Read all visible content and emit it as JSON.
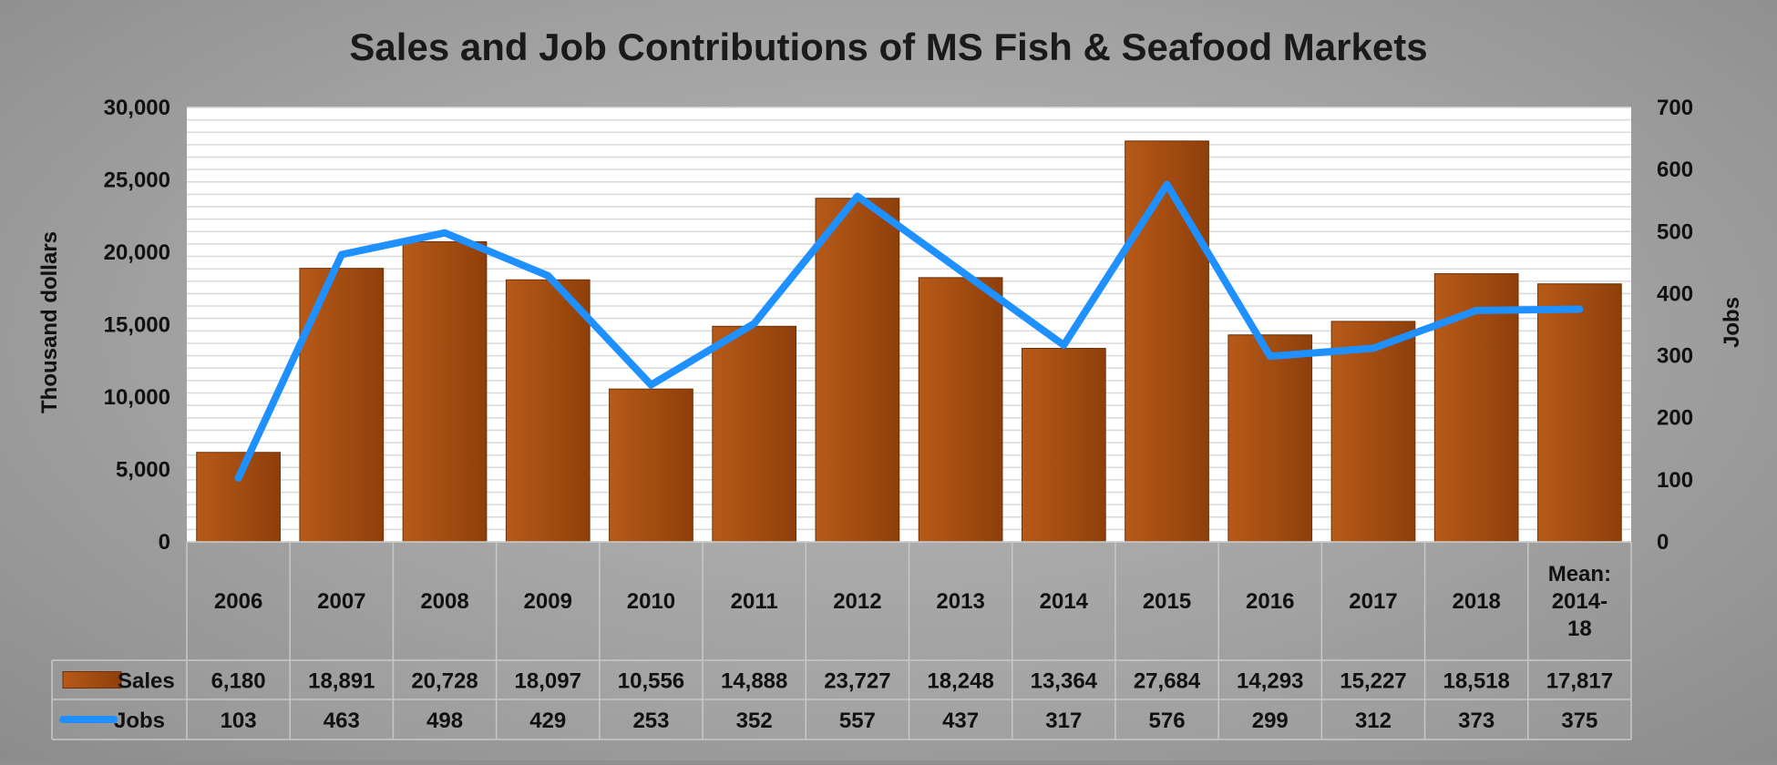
{
  "chart_data": {
    "type": "bar",
    "title": "Sales and Job Contributions of MS Fish & Seafood Markets",
    "categories": [
      "2006",
      "2007",
      "2008",
      "2009",
      "2010",
      "2011",
      "2012",
      "2013",
      "2014",
      "2015",
      "2016",
      "2017",
      "2018",
      "Mean: 2014-18"
    ],
    "category_lines": [
      [
        "2006"
      ],
      [
        "2007"
      ],
      [
        "2008"
      ],
      [
        "2009"
      ],
      [
        "2010"
      ],
      [
        "2011"
      ],
      [
        "2012"
      ],
      [
        "2013"
      ],
      [
        "2014"
      ],
      [
        "2015"
      ],
      [
        "2016"
      ],
      [
        "2017"
      ],
      [
        "2018"
      ],
      [
        "Mean:",
        "2014-",
        "18"
      ]
    ],
    "series": [
      {
        "name": "Sales",
        "type": "bar",
        "axis": "left",
        "color": "#a04a0f",
        "values": [
          6180,
          18891,
          20728,
          18097,
          10556,
          14888,
          23727,
          18248,
          13364,
          27684,
          14293,
          15227,
          18518,
          17817
        ],
        "labels": [
          "6,180",
          "18,891",
          "20,728",
          "18,097",
          "10,556",
          "14,888",
          "23,727",
          "18,248",
          "13,364",
          "27,684",
          "14,293",
          "15,227",
          "18,518",
          "17,817"
        ]
      },
      {
        "name": "Jobs",
        "type": "line",
        "axis": "right",
        "color": "#1e90ff",
        "values": [
          103,
          463,
          498,
          429,
          253,
          352,
          557,
          437,
          317,
          576,
          299,
          312,
          373,
          375
        ],
        "labels": [
          "103",
          "463",
          "498",
          "429",
          "253",
          "352",
          "557",
          "437",
          "317",
          "576",
          "299",
          "312",
          "373",
          "375"
        ]
      }
    ],
    "ylabel": "Thousand dollars",
    "ylim": [
      0,
      30000
    ],
    "yticks": [
      0,
      5000,
      10000,
      15000,
      20000,
      25000,
      30000
    ],
    "ytick_labels": [
      "0",
      "5,000",
      "10,000",
      "15,000",
      "20,000",
      "25,000",
      "30,000"
    ],
    "y2label": "Jobs",
    "y2lim": [
      0,
      700
    ],
    "y2ticks": [
      0,
      100,
      200,
      300,
      400,
      500,
      600,
      700
    ],
    "y2tick_labels": [
      "0",
      "100",
      "200",
      "300",
      "400",
      "500",
      "600",
      "700"
    ],
    "grid": true,
    "legend": "data-table"
  }
}
